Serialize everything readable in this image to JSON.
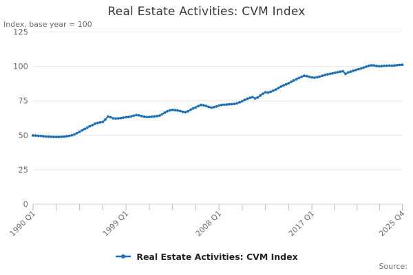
{
  "chart": {
    "title": "Real Estate Activities: CVM Index",
    "subtitle": "Index, base year = 100",
    "source_label": "Source:",
    "legend_label": "Real Estate Activities: CVM Index"
  },
  "chart_data": {
    "type": "line",
    "title": "Real Estate Activities: CVM Index",
    "subtitle": "Index, base year = 100",
    "xlabel": "",
    "ylabel": "Index, base year = 100",
    "x_unit": "quarter",
    "x_start": "1990 Q1",
    "x_end": "2025 Q4",
    "n_points": 144,
    "ylim": [
      0,
      125
    ],
    "y_ticks": [
      0,
      25,
      50,
      75,
      100,
      125
    ],
    "grid": "horizontal-only",
    "legend_position": "bottom-center",
    "x_tick_labels": [
      "1990 Q1",
      "1999 Q1",
      "2008 Q1",
      "2017 Q1",
      "2025 Q4"
    ],
    "x_label_positions_q": [
      0,
      36,
      72,
      108,
      143
    ],
    "x_minor_ticks_q": [
      0,
      9,
      18,
      27,
      36,
      45,
      54,
      63,
      72,
      81,
      90,
      99,
      108,
      116.75,
      125.5,
      134.25,
      143
    ],
    "colors": {
      "line": "#1d70b8",
      "grid": "#e6e6e6",
      "axis_line": "#d2d2d2",
      "tick": "#aebdd8",
      "tick_text": "#6d6d6d"
    },
    "series": [
      {
        "name": "Real Estate Activities: CVM Index",
        "color": "#1d70b8",
        "marker": "circle",
        "values": [
          49.9,
          49.8,
          49.6,
          49.5,
          49.3,
          49.1,
          49.0,
          48.9,
          48.8,
          48.8,
          48.8,
          48.9,
          49.0,
          49.3,
          49.6,
          50.0,
          50.6,
          51.6,
          52.6,
          53.6,
          54.6,
          55.6,
          56.6,
          57.4,
          58.4,
          59.0,
          59.4,
          59.7,
          61.5,
          63.6,
          63.1,
          62.4,
          62.2,
          62.3,
          62.5,
          62.8,
          63.1,
          63.3,
          63.7,
          64.2,
          64.7,
          64.4,
          63.9,
          63.5,
          63.2,
          63.3,
          63.5,
          63.7,
          63.9,
          64.3,
          65.3,
          66.4,
          67.4,
          68.1,
          68.4,
          68.2,
          68.0,
          67.6,
          67.0,
          66.8,
          67.4,
          68.6,
          69.5,
          70.2,
          71.2,
          72.0,
          71.8,
          71.3,
          70.6,
          70.1,
          70.4,
          70.9,
          71.6,
          72.0,
          72.2,
          72.3,
          72.5,
          72.6,
          72.8,
          73.2,
          73.9,
          74.8,
          75.7,
          76.5,
          77.2,
          77.7,
          76.8,
          77.5,
          78.9,
          80.2,
          81.2,
          81.0,
          81.6,
          82.4,
          83.3,
          84.3,
          85.4,
          86.2,
          87.0,
          87.8,
          88.8,
          89.8,
          90.7,
          91.6,
          92.5,
          93.2,
          92.9,
          92.4,
          92.0,
          91.8,
          92.1,
          92.6,
          93.2,
          93.7,
          94.2,
          94.6,
          95.0,
          95.4,
          95.8,
          96.2,
          96.5,
          94.6,
          95.6,
          96.2,
          96.8,
          97.4,
          98.0,
          98.5,
          99.1,
          99.8,
          100.4,
          100.8,
          100.7,
          100.3,
          100.1,
          100.2,
          100.4,
          100.5,
          100.6,
          100.5,
          100.7,
          100.9,
          101.1,
          101.2
        ]
      }
    ]
  }
}
